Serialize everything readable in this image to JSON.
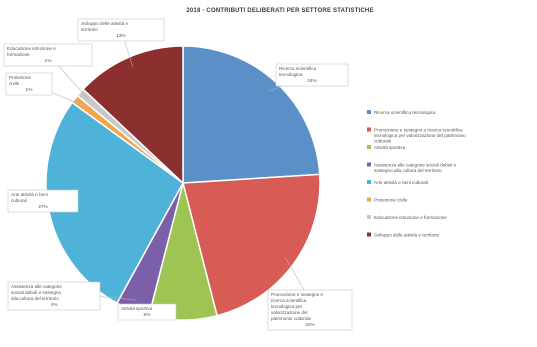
{
  "chart_data": {
    "type": "pie",
    "title": "2018 - CONTRIBUTI DELIBERATI PER SETTORE STATISTICHE",
    "legend_position": "right",
    "series": [
      {
        "label": "Ricerca scientifica tecnologica",
        "value": 24,
        "value_label": "24%",
        "color": "#5b8fc8"
      },
      {
        "label": "Promozione e sostegno e ricerca scientifica tecnologica per valorizzazione del patrimonio culturale",
        "value": 22,
        "value_label": "22%",
        "color": "#d65c55"
      },
      {
        "label": "Attività sportiva",
        "value": 8,
        "value_label": "8%",
        "color": "#9ec553"
      },
      {
        "label": "Assistenza alle categorie sociali deboli e sostegno alla cultura del territorio",
        "value": 4,
        "value_label": "4%",
        "color": "#7b5fa8"
      },
      {
        "label": "Arte attività e beni culturali",
        "value": 27,
        "value_label": "27%",
        "color": "#4fb3d9"
      },
      {
        "label": "Protezione civile",
        "value": 1,
        "value_label": "1%",
        "color": "#f0a54e"
      },
      {
        "label": "Educazione istruzione e formazione",
        "value": 1,
        "value_label": "1%",
        "color": "#c9c9c9"
      },
      {
        "label": "Sviluppo delle attività e territorio",
        "value": 13,
        "value_label": "13%",
        "color": "#8b2f2f"
      }
    ]
  }
}
